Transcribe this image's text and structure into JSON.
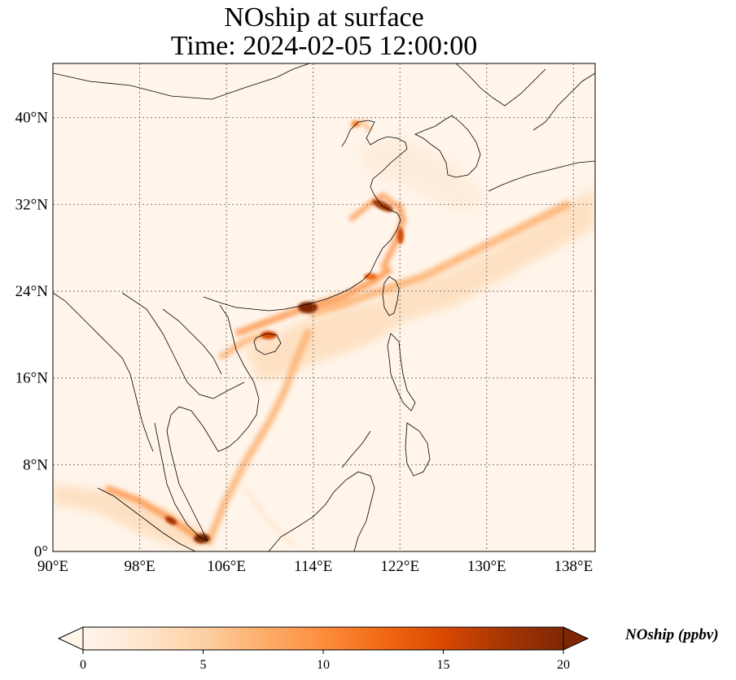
{
  "title": {
    "line1": "NOship at surface",
    "line2": "Time: 2024-02-05 12:00:00"
  },
  "map": {
    "lon_range": [
      90,
      140
    ],
    "lat_range": [
      0,
      45
    ],
    "lon_ticks": [
      {
        "value": 90,
        "label": "90°E"
      },
      {
        "value": 98,
        "label": "98°E"
      },
      {
        "value": 106,
        "label": "106°E"
      },
      {
        "value": 114,
        "label": "114°E"
      },
      {
        "value": 122,
        "label": "122°E"
      },
      {
        "value": 130,
        "label": "130°E"
      },
      {
        "value": 138,
        "label": "138°E"
      }
    ],
    "lat_ticks": [
      {
        "value": 0,
        "label": "0°"
      },
      {
        "value": 8,
        "label": "8°N"
      },
      {
        "value": 16,
        "label": "16°N"
      },
      {
        "value": 24,
        "label": "24°N"
      },
      {
        "value": 32,
        "label": "32°N"
      },
      {
        "value": 40,
        "label": "40°N"
      }
    ],
    "gridlines": true,
    "background_color": "#fff5eb",
    "coastline_color": "#000000"
  },
  "colorbar": {
    "label": "NOship (ppbv)",
    "min": 0,
    "max": 20,
    "ticks": [
      {
        "value": 0,
        "label": "0"
      },
      {
        "value": 5,
        "label": "5"
      },
      {
        "value": 10,
        "label": "10"
      },
      {
        "value": 15,
        "label": "15"
      },
      {
        "value": 20,
        "label": "20"
      }
    ],
    "extend": "both",
    "colormap": [
      "#fff5eb",
      "#fee6ce",
      "#fdd0a2",
      "#fdae6b",
      "#fd8d3c",
      "#f16913",
      "#d94801",
      "#a63603",
      "#7f2704"
    ]
  }
}
